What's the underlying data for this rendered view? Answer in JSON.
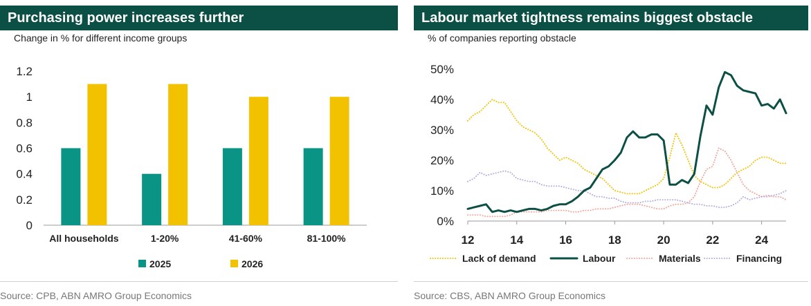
{
  "charts": [
    {
      "title": "Purchasing power increases further",
      "subtitle": "Change in % for different income groups",
      "source": "Source: CPB, ABN AMRO Group Economics"
    },
    {
      "title": "Labour market tightness remains biggest obstacle",
      "subtitle": "% of companies reporting obstacle",
      "source": "Source: CBS, ABN AMRO Group Economics"
    }
  ],
  "colors": {
    "header": "#0b4f45",
    "teal": "#0a9485",
    "yellow": "#f2c200",
    "dark_green": "#0b4f45",
    "salmon": "#f2a59a",
    "lavender": "#b4ace0"
  },
  "chart_data": [
    {
      "type": "bar",
      "title": "Purchasing power increases further",
      "subtitle": "Change in % for different income groups",
      "categories": [
        "All households",
        "1-20%",
        "41-60%",
        "81-100%"
      ],
      "series": [
        {
          "name": "2025",
          "values": [
            0.6,
            0.4,
            0.6,
            0.6
          ],
          "color": "#0a9485"
        },
        {
          "name": "2026",
          "values": [
            1.1,
            1.1,
            1.0,
            1.0
          ],
          "color": "#f2c200"
        }
      ],
      "yticks": [
        "0",
        "0.2",
        "0.4",
        "0.6",
        "0.8",
        "1",
        "1.2"
      ],
      "ylim": [
        0,
        1.2
      ],
      "grid": false,
      "legend": "bottom"
    },
    {
      "type": "line",
      "title": "Labour market tightness remains biggest obstacle",
      "subtitle": "% of companies reporting obstacle",
      "xlim": [
        2012,
        2025
      ],
      "ylim": [
        0,
        50
      ],
      "xticks": [
        {
          "value": 2012,
          "label": "12"
        },
        {
          "value": 2014,
          "label": "14"
        },
        {
          "value": 2016,
          "label": "16"
        },
        {
          "value": 2018,
          "label": "18"
        },
        {
          "value": 2020,
          "label": "20"
        },
        {
          "value": 2022,
          "label": "22"
        },
        {
          "value": 2024,
          "label": "24"
        }
      ],
      "yticks": [
        {
          "value": 0,
          "label": "0%"
        },
        {
          "value": 10,
          "label": "10%"
        },
        {
          "value": 20,
          "label": "20%"
        },
        {
          "value": 30,
          "label": "30%"
        },
        {
          "value": 40,
          "label": "40%"
        },
        {
          "value": 50,
          "label": "50%"
        }
      ],
      "grid": false,
      "legend": "bottom",
      "series": [
        {
          "name": "Lack of demand",
          "color": "#f2c200",
          "style": "dotted",
          "x": [
            2012.0,
            2012.25,
            2012.5,
            2012.75,
            2013.0,
            2013.25,
            2013.5,
            2013.75,
            2014.0,
            2014.25,
            2014.5,
            2014.75,
            2015.0,
            2015.25,
            2015.5,
            2015.75,
            2016.0,
            2016.25,
            2016.5,
            2016.75,
            2017.0,
            2017.25,
            2017.5,
            2017.75,
            2018.0,
            2018.25,
            2018.5,
            2018.75,
            2019.0,
            2019.25,
            2019.5,
            2019.75,
            2020.0,
            2020.25,
            2020.5,
            2020.75,
            2021.0,
            2021.25,
            2021.5,
            2021.75,
            2022.0,
            2022.25,
            2022.5,
            2022.75,
            2023.0,
            2023.25,
            2023.5,
            2023.75,
            2024.0,
            2024.25,
            2024.5,
            2024.75,
            2025.0
          ],
          "y": [
            33,
            35,
            36,
            38,
            40,
            39,
            39,
            36,
            33,
            31,
            30,
            29,
            27,
            24,
            22,
            20,
            21,
            20,
            19,
            17,
            16,
            15,
            14,
            12,
            10,
            9.5,
            9,
            9,
            9,
            10,
            11,
            12,
            14,
            21,
            29,
            25,
            20,
            15,
            13,
            12,
            11,
            11,
            12,
            14,
            16,
            17,
            18,
            20,
            21,
            21,
            20,
            19,
            19
          ]
        },
        {
          "name": "Labour",
          "color": "#0b4f45",
          "style": "solid",
          "x": [
            2012.0,
            2012.25,
            2012.5,
            2012.75,
            2013.0,
            2013.25,
            2013.5,
            2013.75,
            2014.0,
            2014.25,
            2014.5,
            2014.75,
            2015.0,
            2015.25,
            2015.5,
            2015.75,
            2016.0,
            2016.25,
            2016.5,
            2016.75,
            2017.0,
            2017.25,
            2017.5,
            2017.75,
            2018.0,
            2018.25,
            2018.5,
            2018.75,
            2019.0,
            2019.25,
            2019.5,
            2019.75,
            2020.0,
            2020.25,
            2020.5,
            2020.75,
            2021.0,
            2021.25,
            2021.5,
            2021.75,
            2022.0,
            2022.25,
            2022.5,
            2022.75,
            2023.0,
            2023.25,
            2023.5,
            2023.75,
            2024.0,
            2024.25,
            2024.5,
            2024.75,
            2025.0
          ],
          "y": [
            4,
            4.5,
            5,
            5.5,
            3,
            3.5,
            3,
            3.5,
            3,
            3.5,
            4,
            4,
            3.5,
            4,
            5,
            5.5,
            5.5,
            6.5,
            8,
            10,
            11,
            14,
            17,
            18,
            20,
            22.5,
            27.5,
            29.5,
            27.5,
            27.5,
            28.5,
            28.5,
            26.5,
            12,
            12,
            13.5,
            12.5,
            15.5,
            28,
            38,
            35,
            44,
            49,
            48,
            44.5,
            43,
            42.5,
            42,
            38,
            38.5,
            37,
            40,
            35.5
          ]
        },
        {
          "name": "Materials",
          "color": "#f2a59a",
          "style": "dotted",
          "x": [
            2012.0,
            2012.25,
            2012.5,
            2012.75,
            2013.0,
            2013.25,
            2013.5,
            2013.75,
            2014.0,
            2014.25,
            2014.5,
            2014.75,
            2015.0,
            2015.25,
            2015.5,
            2015.75,
            2016.0,
            2016.25,
            2016.5,
            2016.75,
            2017.0,
            2017.25,
            2017.5,
            2017.75,
            2018.0,
            2018.25,
            2018.5,
            2018.75,
            2019.0,
            2019.25,
            2019.5,
            2019.75,
            2020.0,
            2020.25,
            2020.5,
            2020.75,
            2021.0,
            2021.25,
            2021.5,
            2021.75,
            2022.0,
            2022.25,
            2022.5,
            2022.75,
            2023.0,
            2023.25,
            2023.5,
            2023.75,
            2024.0,
            2024.25,
            2024.5,
            2024.75,
            2025.0
          ],
          "y": [
            2,
            2,
            2,
            1.5,
            1.5,
            1.5,
            1.5,
            2,
            3,
            3,
            3,
            3,
            3,
            3.5,
            3.5,
            3.5,
            3.5,
            3,
            3,
            3.5,
            3.5,
            4,
            4,
            4,
            4.5,
            5,
            5.5,
            5.5,
            5.5,
            5,
            4.5,
            4,
            4,
            5,
            5.5,
            5.5,
            6,
            8,
            13,
            17,
            18,
            24,
            23,
            20,
            16,
            12,
            10,
            9,
            8,
            8.5,
            8,
            8,
            7
          ]
        },
        {
          "name": "Financing",
          "color": "#b4ace0",
          "style": "dotted",
          "x": [
            2012.0,
            2012.25,
            2012.5,
            2012.75,
            2013.0,
            2013.25,
            2013.5,
            2013.75,
            2014.0,
            2014.25,
            2014.5,
            2014.75,
            2015.0,
            2015.25,
            2015.5,
            2015.75,
            2016.0,
            2016.25,
            2016.5,
            2016.75,
            2017.0,
            2017.25,
            2017.5,
            2017.75,
            2018.0,
            2018.25,
            2018.5,
            2018.75,
            2019.0,
            2019.25,
            2019.5,
            2019.75,
            2020.0,
            2020.25,
            2020.5,
            2020.75,
            2021.0,
            2021.25,
            2021.5,
            2021.75,
            2022.0,
            2022.25,
            2022.5,
            2022.75,
            2023.0,
            2023.25,
            2023.5,
            2023.75,
            2024.0,
            2024.25,
            2024.5,
            2024.75,
            2025.0
          ],
          "y": [
            13,
            14,
            16,
            15,
            15.5,
            16,
            16.5,
            16,
            14,
            13.5,
            13,
            13,
            12,
            11.5,
            11.5,
            11.5,
            11,
            10.5,
            10,
            10,
            9,
            8,
            8,
            7.5,
            7.5,
            6.5,
            6,
            6,
            6,
            6.5,
            6.5,
            7,
            7,
            7,
            7,
            6.5,
            6,
            5.5,
            5.5,
            5,
            5,
            4.5,
            4.5,
            5,
            6,
            8,
            7,
            7.5,
            8,
            8,
            8.5,
            9,
            10
          ]
        }
      ]
    }
  ]
}
